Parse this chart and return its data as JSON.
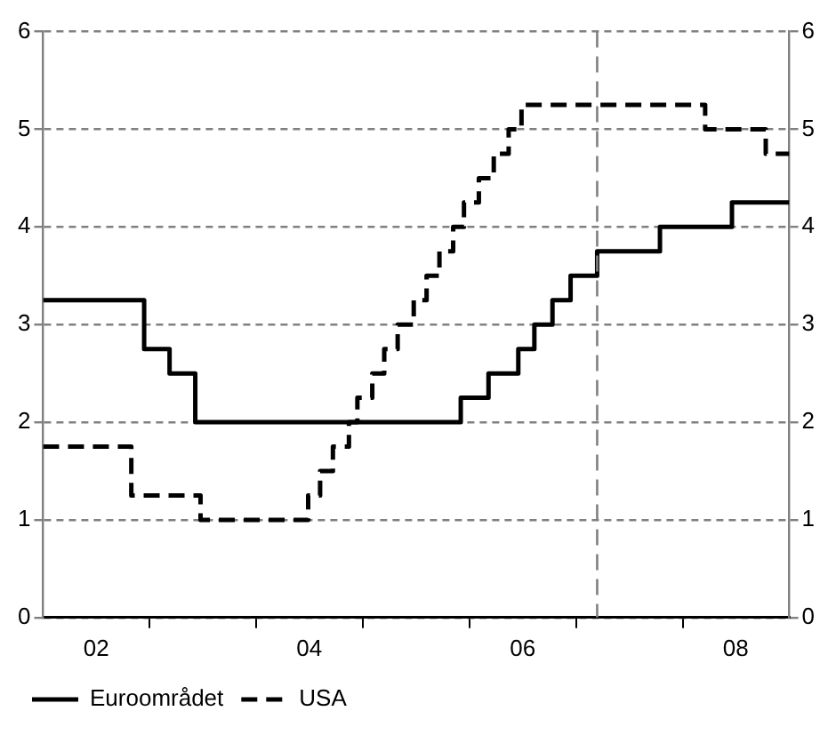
{
  "chart_data": {
    "type": "step",
    "series": [
      {
        "name": "Euroområdet",
        "color": "#000000",
        "line_style": "solid",
        "x": [
          "2002-01-01",
          "2002-12-13",
          "2003-03-10",
          "2003-06-06",
          "2005-12-02",
          "2006-03-07",
          "2006-06-17",
          "2006-08-11",
          "2006-10-12",
          "2006-12-13",
          "2007-03-14",
          "2007-10-15",
          "2008-06-18",
          "2009-01-01"
        ],
        "values": [
          3.25,
          2.75,
          2.5,
          2.0,
          2.25,
          2.5,
          2.75,
          3.0,
          3.25,
          3.5,
          3.75,
          4.0,
          4.25,
          4.25
        ]
      },
      {
        "name": "USA",
        "color": "#000000",
        "line_style": "dashed",
        "x": [
          "2002-01-01",
          "2002-10-30",
          "2003-06-24",
          "2004-06-27",
          "2004-08-07",
          "2004-09-20",
          "2004-11-14",
          "2004-12-13",
          "2005-02-02",
          "2005-03-15",
          "2005-04-30",
          "2005-06-24",
          "2005-08-07",
          "2005-09-20",
          "2005-11-06",
          "2005-12-13",
          "2006-02-02",
          "2006-03-25",
          "2006-05-15",
          "2006-06-28",
          "2008-03-18",
          "2008-10-12",
          "2009-01-01"
        ],
        "values": [
          1.75,
          1.25,
          1.0,
          1.25,
          1.5,
          1.75,
          2.0,
          2.25,
          2.5,
          2.75,
          3.0,
          3.25,
          3.5,
          3.75,
          4.0,
          4.25,
          4.5,
          4.75,
          5.0,
          5.25,
          5.0,
          4.75,
          4.75
        ]
      }
    ],
    "xlim": [
      "2002-01-01",
      "2009-01-01"
    ],
    "xticks": [
      {
        "value": "2002-07-02",
        "label": "02"
      },
      {
        "value": "2003-01-01",
        "label": null
      },
      {
        "value": "2004-01-01",
        "label": null
      },
      {
        "value": "2004-07-01",
        "label": "04"
      },
      {
        "value": "2005-01-01",
        "label": null
      },
      {
        "value": "2006-01-01",
        "label": null
      },
      {
        "value": "2006-07-02",
        "label": "06"
      },
      {
        "value": "2007-01-01",
        "label": null
      },
      {
        "value": "2008-01-01",
        "label": null
      },
      {
        "value": "2008-07-01",
        "label": "08"
      }
    ],
    "ylim": [
      0,
      6
    ],
    "yticks": [
      0,
      1,
      2,
      3,
      4,
      5,
      6
    ],
    "y2lim": [
      0,
      6
    ],
    "y2ticks": [
      0,
      1,
      2,
      3,
      4,
      5,
      6
    ],
    "ref_lines": [
      {
        "axis": "x",
        "value": "2007-03-14",
        "color": "#808080",
        "line_style": "dashed"
      }
    ],
    "grid": "y",
    "legend": "bottom left",
    "marker": "none"
  }
}
